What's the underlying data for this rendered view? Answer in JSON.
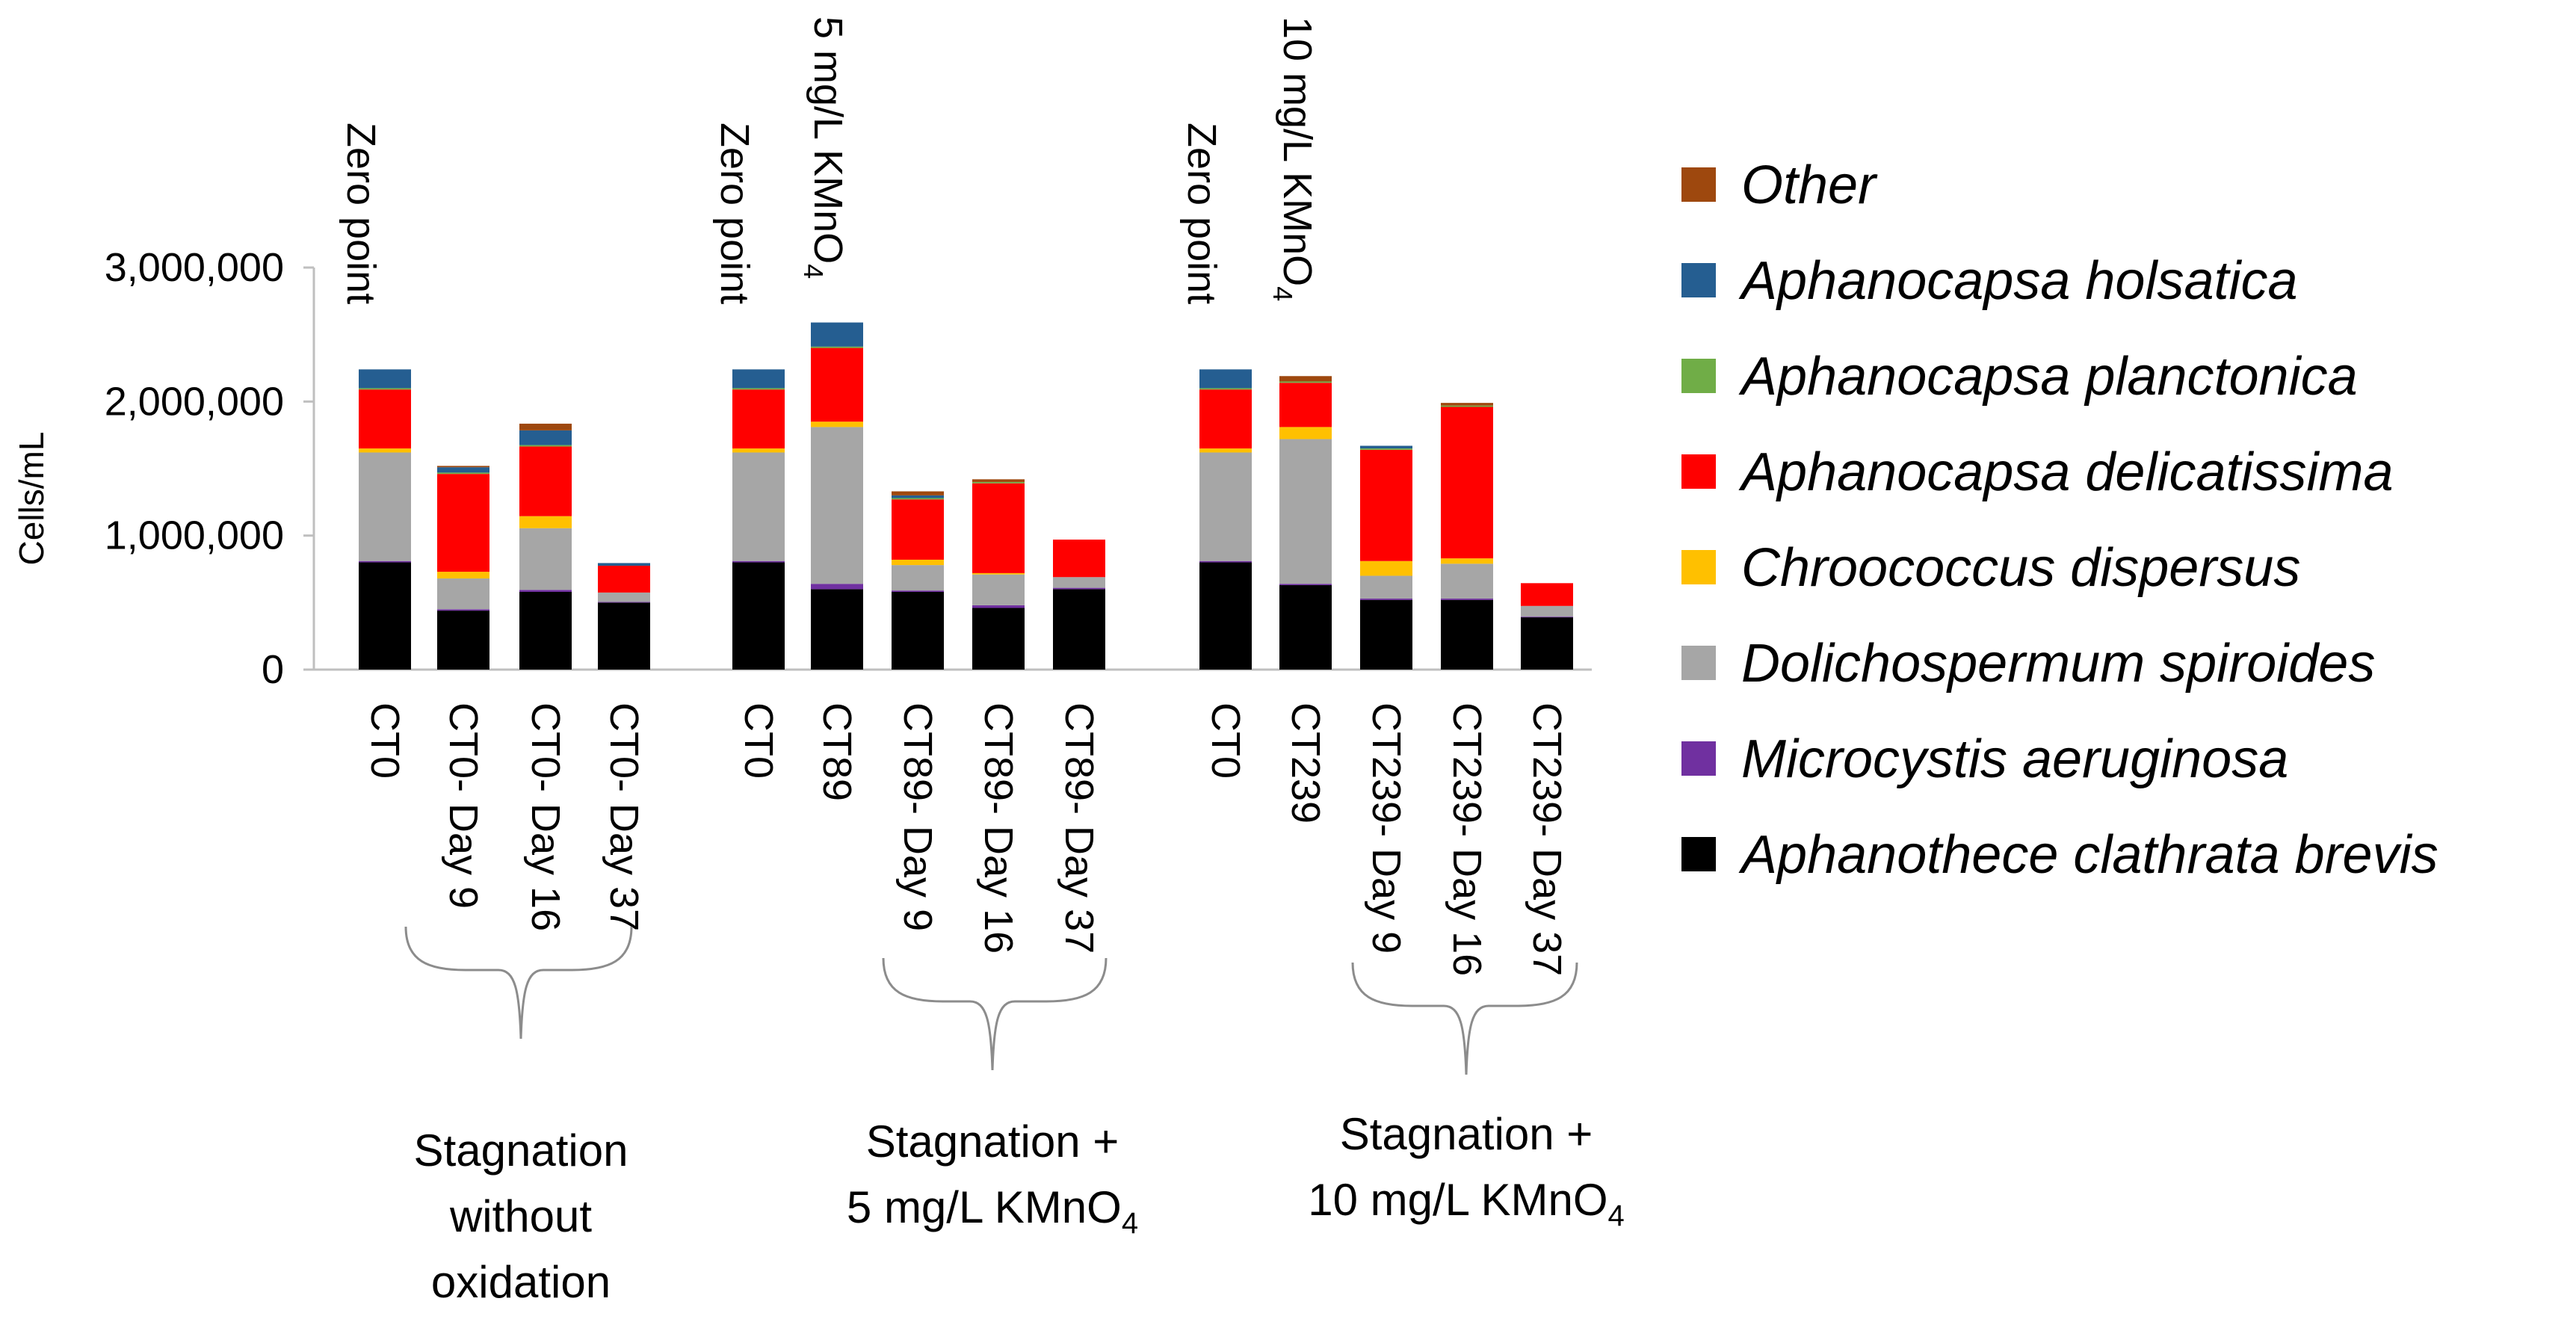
{
  "chart_data": {
    "type": "bar",
    "stacked": true,
    "ylabel": "Cells/mL",
    "ylim": [
      0,
      3000000
    ],
    "yticks": [
      0,
      1000000,
      2000000,
      3000000
    ],
    "ytick_labels": [
      "0",
      "1,000,000",
      "2,000,000",
      "3,000,000"
    ],
    "grid": false,
    "legend_position": "right",
    "categories": [
      "CT0",
      "CT0- Day 9",
      "CT0- Day 16",
      "CT0- Day 37",
      "CT0",
      "CT89",
      "CT89- Day 9",
      "CT89- Day 16",
      "CT89- Day 37",
      "CT0",
      "CT239",
      "CT239- Day 9",
      "CT239- Day 16",
      "CT239- Day 37"
    ],
    "series": [
      {
        "name": "Aphanothece clathrata brevis",
        "color": "#000000",
        "values": [
          800000,
          440000,
          580000,
          500000,
          800000,
          600000,
          580000,
          460000,
          600000,
          800000,
          630000,
          520000,
          520000,
          390000
        ]
      },
      {
        "name": "Microcystis aeruginosa",
        "color": "#7030a0",
        "values": [
          10000,
          10000,
          15000,
          5000,
          10000,
          40000,
          10000,
          20000,
          10000,
          10000,
          10000,
          10000,
          10000,
          5000
        ]
      },
      {
        "name": "Dolichospermum spiroides",
        "color": "#a6a6a6",
        "values": [
          810000,
          230000,
          460000,
          70000,
          810000,
          1170000,
          190000,
          230000,
          80000,
          810000,
          1080000,
          170000,
          260000,
          80000
        ]
      },
      {
        "name": "Chroococcus dispersus",
        "color": "#ffc000",
        "values": [
          30000,
          50000,
          90000,
          0,
          30000,
          40000,
          40000,
          10000,
          0,
          30000,
          90000,
          110000,
          40000,
          0
        ]
      },
      {
        "name": "Aphanocapsa delicatissima",
        "color": "#ff0000",
        "values": [
          440000,
          730000,
          520000,
          200000,
          440000,
          550000,
          450000,
          670000,
          280000,
          440000,
          330000,
          830000,
          1130000,
          170000
        ]
      },
      {
        "name": "Aphanocapsa planctonica",
        "color": "#70ad47",
        "values": [
          10000,
          10000,
          10000,
          0,
          10000,
          10000,
          10000,
          10000,
          0,
          10000,
          10000,
          10000,
          10000,
          0
        ]
      },
      {
        "name": "Aphanocapsa holsatica",
        "color": "#255e91",
        "values": [
          140000,
          40000,
          110000,
          20000,
          140000,
          180000,
          20000,
          0,
          0,
          140000,
          0,
          20000,
          0,
          0
        ]
      },
      {
        "name": "Other",
        "color": "#9e480e",
        "values": [
          0,
          10000,
          50000,
          0,
          0,
          0,
          30000,
          20000,
          0,
          0,
          40000,
          0,
          20000,
          0
        ]
      }
    ],
    "legend_order": [
      "Other",
      "Aphanocapsa holsatica",
      "Aphanocapsa planctonica",
      "Aphanocapsa delicatissima",
      "Chroococcus dispersus",
      "Dolichospermum spiroides",
      "Microcystis aeruginosa",
      "Aphanothece clathrata brevis"
    ],
    "annotations": [
      {
        "text": "Zero point",
        "category_index": 0
      },
      {
        "text": "Zero point",
        "category_index": 4
      },
      {
        "text": "5 mg/L KMnO",
        "subscript": "4",
        "category_index": 5
      },
      {
        "text": "Zero point",
        "category_index": 9
      },
      {
        "text": "10 mg/L KMnO",
        "subscript": "4",
        "category_index": 10
      }
    ],
    "groups": [
      {
        "lines": [
          "Stagnation",
          "without",
          "oxidation"
        ],
        "subscript_line": null,
        "from_index": 1,
        "to_index": 3
      },
      {
        "lines": [
          "Stagnation +",
          "5 mg/L KMnO"
        ],
        "subscript": "4",
        "from_index": 6,
        "to_index": 8
      },
      {
        "lines": [
          "Stagnation +",
          "10 mg/L KMnO"
        ],
        "subscript": "4",
        "from_index": 11,
        "to_index": 13
      }
    ]
  }
}
